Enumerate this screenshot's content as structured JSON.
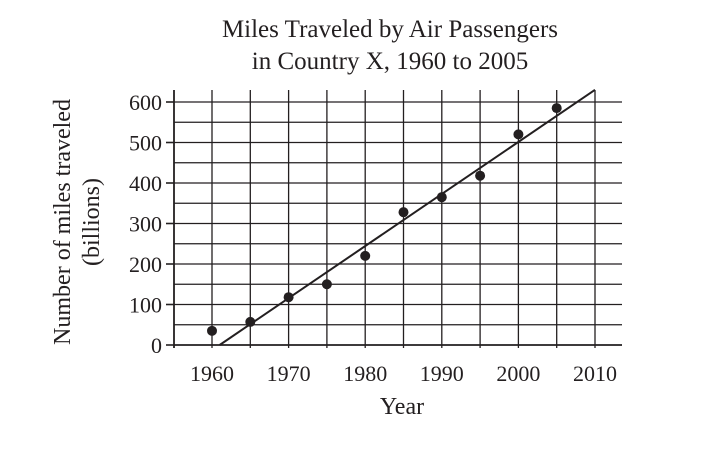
{
  "chart_data": {
    "type": "scatter",
    "title": [
      "Miles Traveled by Air Passengers",
      "in Country X, 1960 to 2005"
    ],
    "xlabel": "Year",
    "ylabel": [
      "Number of miles traveled",
      "(billions)"
    ],
    "x_ticks": [
      1960,
      1970,
      1980,
      1990,
      2000,
      2010
    ],
    "y_ticks": [
      0,
      100,
      200,
      300,
      400,
      500,
      600
    ],
    "xlim": [
      1955,
      2010
    ],
    "ylim": [
      0,
      600
    ],
    "x_grid_step": 5,
    "y_grid_step": 50,
    "grid": true,
    "points": [
      {
        "x": 1960,
        "y": 35
      },
      {
        "x": 1965,
        "y": 57
      },
      {
        "x": 1970,
        "y": 118
      },
      {
        "x": 1975,
        "y": 150
      },
      {
        "x": 1980,
        "y": 220
      },
      {
        "x": 1985,
        "y": 328
      },
      {
        "x": 1990,
        "y": 365
      },
      {
        "x": 1995,
        "y": 418
      },
      {
        "x": 2000,
        "y": 520
      },
      {
        "x": 2005,
        "y": 585
      }
    ],
    "trend_line": {
      "x1": 1961,
      "y1": 0,
      "x2": 2010,
      "y2": 630
    },
    "colors": {
      "ink": "#231f20"
    }
  }
}
